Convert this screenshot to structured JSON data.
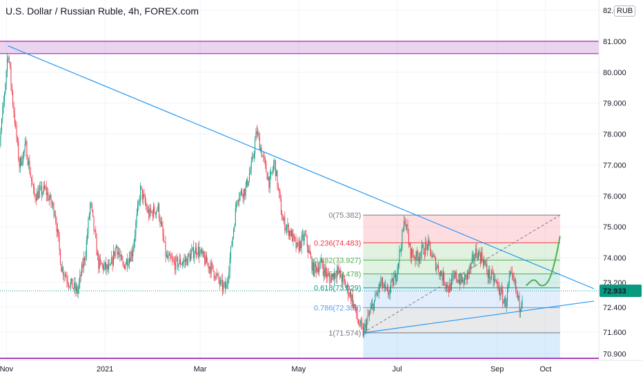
{
  "header": {
    "title": "U.S. Dollar / Russian Ruble, 4h, FOREX.com",
    "currency_button": "RUB"
  },
  "chart_data": {
    "type": "candlestick",
    "title": "U.S. Dollar / Russian Ruble, 4h, FOREX.com",
    "ylim": [
      70.75,
      82.2
    ],
    "y_ticks": [
      {
        "value": 82.0,
        "label": "82.000"
      },
      {
        "value": 81.0,
        "label": "81.000"
      },
      {
        "value": 80.0,
        "label": "80.000"
      },
      {
        "value": 79.0,
        "label": "79.000"
      },
      {
        "value": 78.0,
        "label": "78.000"
      },
      {
        "value": 77.0,
        "label": "77.000"
      },
      {
        "value": 76.0,
        "label": "76.000"
      },
      {
        "value": 75.0,
        "label": "75.000"
      },
      {
        "value": 74.0,
        "label": "74.000"
      },
      {
        "value": 73.2,
        "label": "73.200"
      },
      {
        "value": 72.4,
        "label": "72.400"
      },
      {
        "value": 71.6,
        "label": "71.600"
      },
      {
        "value": 70.9,
        "label": "70.900"
      }
    ],
    "x_ticks": [
      {
        "date": "2020-11-01",
        "label": "Nov"
      },
      {
        "date": "2021-01-01",
        "label": "2021"
      },
      {
        "date": "2021-03-01",
        "label": "Mar"
      },
      {
        "date": "2021-05-01",
        "label": "May"
      },
      {
        "date": "2021-07-01",
        "label": "Jul"
      },
      {
        "date": "2021-09-01",
        "label": "Sep"
      },
      {
        "date": "2021-10-01",
        "label": "Oct"
      }
    ],
    "price_path": [
      [
        "2020-10-25",
        76.1
      ],
      [
        "2020-10-30",
        78.9
      ],
      [
        "2020-11-02",
        80.7
      ],
      [
        "2020-11-05",
        79.0
      ],
      [
        "2020-11-09",
        77.0
      ],
      [
        "2020-11-13",
        77.6
      ],
      [
        "2020-11-18",
        76.0
      ],
      [
        "2020-11-25",
        76.2
      ],
      [
        "2020-12-01",
        75.5
      ],
      [
        "2020-12-05",
        73.7
      ],
      [
        "2020-12-10",
        73.2
      ],
      [
        "2020-12-15",
        72.9
      ],
      [
        "2020-12-20",
        74.2
      ],
      [
        "2020-12-23",
        75.8
      ],
      [
        "2020-12-28",
        73.8
      ],
      [
        "2021-01-04",
        73.6
      ],
      [
        "2021-01-08",
        74.4
      ],
      [
        "2021-01-12",
        73.7
      ],
      [
        "2021-01-18",
        74.2
      ],
      [
        "2021-01-23",
        76.2
      ],
      [
        "2021-01-28",
        75.4
      ],
      [
        "2021-02-03",
        75.6
      ],
      [
        "2021-02-08",
        74.0
      ],
      [
        "2021-02-13",
        73.8
      ],
      [
        "2021-02-20",
        73.9
      ],
      [
        "2021-02-27",
        74.3
      ],
      [
        "2021-03-04",
        73.9
      ],
      [
        "2021-03-09",
        73.6
      ],
      [
        "2021-03-14",
        73.1
      ],
      [
        "2021-03-17",
        73.0
      ],
      [
        "2021-03-20",
        74.2
      ],
      [
        "2021-03-24",
        76.0
      ],
      [
        "2021-03-29",
        76.2
      ],
      [
        "2021-04-02",
        77.0
      ],
      [
        "2021-04-05",
        78.1
      ],
      [
        "2021-04-09",
        77.2
      ],
      [
        "2021-04-13",
        76.4
      ],
      [
        "2021-04-16",
        77.1
      ],
      [
        "2021-04-21",
        75.2
      ],
      [
        "2021-04-26",
        74.8
      ],
      [
        "2021-04-30",
        74.3
      ],
      [
        "2021-05-05",
        74.7
      ],
      [
        "2021-05-10",
        73.6
      ],
      [
        "2021-05-15",
        73.8
      ],
      [
        "2021-05-20",
        73.3
      ],
      [
        "2021-05-25",
        73.6
      ],
      [
        "2021-05-30",
        73.1
      ],
      [
        "2021-06-03",
        72.7
      ],
      [
        "2021-06-07",
        71.9
      ],
      [
        "2021-06-10",
        71.574
      ],
      [
        "2021-06-14",
        72.2
      ],
      [
        "2021-06-17",
        72.6
      ],
      [
        "2021-06-21",
        73.2
      ],
      [
        "2021-06-25",
        72.8
      ],
      [
        "2021-06-30",
        73.4
      ],
      [
        "2021-07-03",
        74.3
      ],
      [
        "2021-07-06",
        75.3
      ],
      [
        "2021-07-09",
        74.2
      ],
      [
        "2021-07-13",
        74.0
      ],
      [
        "2021-07-16",
        74.2
      ],
      [
        "2021-07-20",
        74.4
      ],
      [
        "2021-07-24",
        73.9
      ],
      [
        "2021-07-28",
        73.5
      ],
      [
        "2021-08-02",
        73.0
      ],
      [
        "2021-08-06",
        73.4
      ],
      [
        "2021-08-11",
        73.2
      ],
      [
        "2021-08-15",
        73.6
      ],
      [
        "2021-08-19",
        74.2
      ],
      [
        "2021-08-23",
        74.0
      ],
      [
        "2021-08-26",
        73.5
      ],
      [
        "2021-08-30",
        73.3
      ],
      [
        "2021-09-02",
        73.0
      ],
      [
        "2021-09-06",
        72.5
      ],
      [
        "2021-09-09",
        73.4
      ],
      [
        "2021-09-12",
        73.1
      ],
      [
        "2021-09-15",
        72.4
      ],
      [
        "2021-09-17",
        72.933
      ]
    ],
    "current_price": {
      "value": 72.933,
      "label": "72.933",
      "color": "#089981"
    },
    "resistance_zone": {
      "low": 80.6,
      "high": 81.0,
      "color": "#9c27b0"
    },
    "bottom_line": {
      "value": 70.75,
      "color": "#9c27b0"
    },
    "trendlines": [
      {
        "name": "descending",
        "from": [
          "2020-11-02",
          80.85
        ],
        "to": [
          "2021-10-31",
          73.0
        ],
        "color": "#2196f3"
      },
      {
        "name": "ascending",
        "from": [
          "2021-06-10",
          71.574
        ],
        "to": [
          "2021-10-31",
          72.6
        ],
        "color": "#2196f3"
      }
    ],
    "fibonacci": {
      "from_date": "2021-06-10",
      "to_date": "2021-10-10",
      "levels": [
        {
          "ratio": "0",
          "value": 75.382,
          "label": "0(75.382)",
          "color": "#787b86"
        },
        {
          "ratio": "0.236",
          "value": 74.483,
          "label": "0.236(74.483)",
          "color": "#f23645"
        },
        {
          "ratio": "0.382",
          "value": 73.927,
          "label": "0.382(73.927)",
          "color": "#4caf50"
        },
        {
          "ratio": "0.5",
          "value": 73.478,
          "label": "0.5(73.478)",
          "color": "#4caf50"
        },
        {
          "ratio": "0.618",
          "value": 73.029,
          "label": "0.618(73.029)",
          "color": "#089981"
        },
        {
          "ratio": "0.786",
          "value": 72.389,
          "label": "0.786(72.389)",
          "color": "#5b9cf6"
        },
        {
          "ratio": "1",
          "value": 71.574,
          "label": "1(71.574)",
          "color": "#787b86"
        }
      ]
    },
    "projection": [
      [
        "2021-09-19",
        73.1
      ],
      [
        "2021-09-24",
        73.35
      ],
      [
        "2021-09-28",
        73.05
      ],
      [
        "2021-10-03",
        73.2
      ],
      [
        "2021-10-07",
        73.9
      ],
      [
        "2021-10-10",
        74.7
      ]
    ],
    "colors": {
      "up": "#089981",
      "down": "#f23645",
      "background": "#ffffff",
      "grid": "#f0f3fa"
    }
  }
}
